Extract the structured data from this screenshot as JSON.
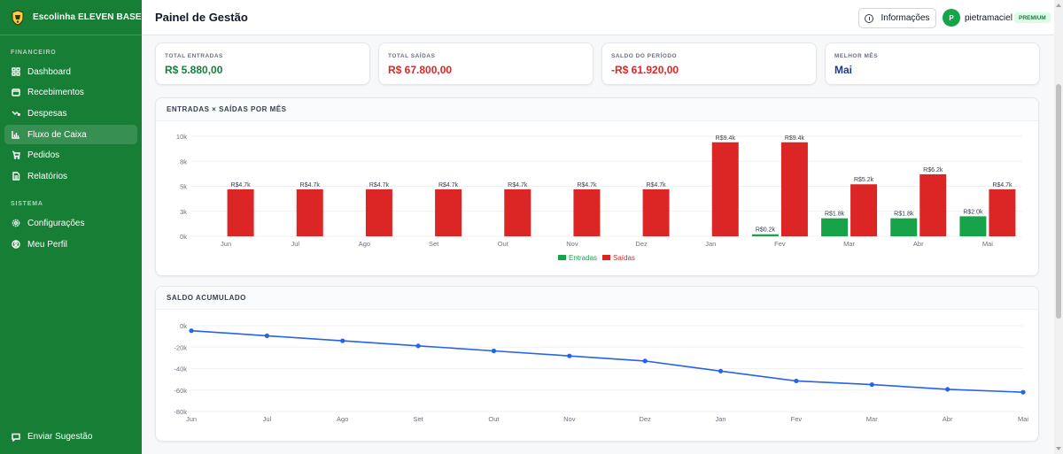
{
  "sidebar": {
    "brand": "Escolinha ELEVEN BASE",
    "section_financeiro": "FINANCEIRO",
    "section_sistema": "SISTEMA",
    "items": [
      {
        "label": "Dashboard",
        "icon": "grid-icon"
      },
      {
        "label": "Recebimentos",
        "icon": "wallet-icon"
      },
      {
        "label": "Despesas",
        "icon": "trend-down-icon"
      },
      {
        "label": "Fluxo de Caixa",
        "icon": "bar-chart-icon",
        "active": true
      },
      {
        "label": "Pedidos",
        "icon": "cart-icon"
      },
      {
        "label": "Relatórios",
        "icon": "document-icon"
      }
    ],
    "system_items": [
      {
        "label": "Configurações",
        "icon": "gear-icon"
      },
      {
        "label": "Meu Perfil",
        "icon": "user-circle-icon"
      }
    ],
    "suggest": "Enviar Sugestão"
  },
  "header": {
    "title": "Painel de Gestão",
    "info_label": "Informações",
    "avatar_letter": "P",
    "username": "pietramaciel",
    "badge": "PREMIUM"
  },
  "kpis": [
    {
      "label": "TOTAL ENTRADAS",
      "value": "R$ 5.880,00",
      "color": "#15803d"
    },
    {
      "label": "TOTAL SAÍDAS",
      "value": "R$ 67.800,00",
      "color": "#dc2626"
    },
    {
      "label": "SALDO DO PERÍODO",
      "value": "-R$ 61.920,00",
      "color": "#dc2626"
    },
    {
      "label": "MELHOR MÊS",
      "value": "Mai",
      "color": "#1e3a8a"
    }
  ],
  "bar_card_title": "ENTRADAS × SAÍDAS POR MÊS",
  "line_card_title": "SALDO ACUMULADO",
  "chart_data": [
    {
      "type": "bar",
      "title": "ENTRADAS × SAÍDAS POR MÊS",
      "categories": [
        "Jun",
        "Jul",
        "Ago",
        "Set",
        "Out",
        "Nov",
        "Dez",
        "Jan",
        "Fev",
        "Mar",
        "Abr",
        "Mai"
      ],
      "ylim": [
        0,
        10
      ],
      "yticks": [
        "0k",
        "3k",
        "5k",
        "8k",
        "10k"
      ],
      "ytick_values": [
        0,
        2.5,
        5,
        7.5,
        10
      ],
      "legend_position": "bottom",
      "grid": true,
      "series": [
        {
          "name": "Entradas",
          "color": "#16a34a",
          "values": [
            0,
            0,
            0,
            0,
            0,
            0,
            0,
            0,
            0.2,
            1.8,
            1.8,
            2.0
          ],
          "labels": [
            "",
            "",
            "",
            "",
            "",
            "",
            "",
            "",
            "R$0.2k",
            "R$1.8k",
            "R$1.8k",
            "R$2.0k"
          ]
        },
        {
          "name": "Saídas",
          "color": "#dc2626",
          "values": [
            4.7,
            4.7,
            4.7,
            4.7,
            4.7,
            4.7,
            4.7,
            9.4,
            9.4,
            5.2,
            6.2,
            4.7
          ],
          "labels": [
            "R$4.7k",
            "R$4.7k",
            "R$4.7k",
            "R$4.7k",
            "R$4.7k",
            "R$4.7k",
            "R$4.7k",
            "R$9.4k",
            "R$9.4k",
            "R$5.2k",
            "R$6.2k",
            "R$4.7k"
          ]
        }
      ]
    },
    {
      "type": "line",
      "title": "SALDO ACUMULADO",
      "categories": [
        "Jun",
        "Jul",
        "Ago",
        "Set",
        "Out",
        "Nov",
        "Dez",
        "Jan",
        "Fev",
        "Mar",
        "Abr",
        "Mai"
      ],
      "ylim": [
        -80,
        0
      ],
      "yticks": [
        "0k",
        "-20k",
        "-40k",
        "-60k",
        "-80k"
      ],
      "ytick_values": [
        0,
        -20,
        -40,
        -60,
        -80
      ],
      "grid": true,
      "series": [
        {
          "color": "#2563eb",
          "values": [
            -4.7,
            -9.4,
            -14.1,
            -18.8,
            -23.5,
            -28.2,
            -32.9,
            -42.3,
            -51.5,
            -54.9,
            -59.3,
            -62.0
          ]
        }
      ]
    }
  ]
}
